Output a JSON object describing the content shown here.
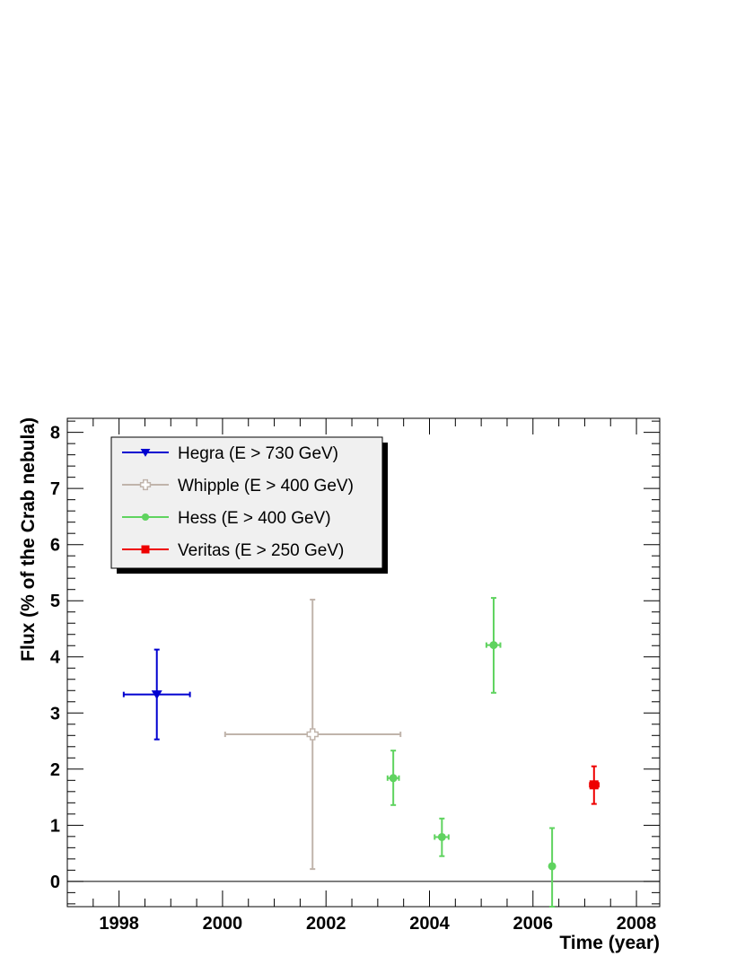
{
  "chart_data": {
    "type": "scatter",
    "title": "",
    "xlabel": "Time (year)",
    "ylabel": "Flux (% of the Crab nebula)",
    "xlim": [
      1997.0,
      2008.45
    ],
    "ylim": [
      -0.45,
      8.25
    ],
    "x_ticks": [
      1998,
      2000,
      2002,
      2004,
      2006,
      2008
    ],
    "x_tick_labels": [
      "1998",
      "2000",
      "2002",
      "2004",
      "2006",
      "2008"
    ],
    "y_ticks": [
      0,
      1,
      2,
      3,
      4,
      5,
      6,
      7,
      8
    ],
    "y_tick_labels": [
      "0",
      "1",
      "2",
      "3",
      "4",
      "5",
      "6",
      "7",
      "8"
    ],
    "grid": false,
    "legend_position": "top-left",
    "zero_line": true,
    "series": [
      {
        "name": "Hegra (E > 730 GeV)",
        "color": "#0000d0",
        "marker": "triangle-down",
        "points": [
          {
            "x": 1998.73,
            "y": 3.33,
            "xerr_low": 1998.09,
            "xerr_high": 1999.37,
            "yerr_low": 2.53,
            "yerr_high": 4.13
          }
        ]
      },
      {
        "name": "Whipple (E > 400 GeV)",
        "color": "#c0b4ab",
        "marker": "open-cross",
        "points": [
          {
            "x": 2001.74,
            "y": 2.62,
            "xerr_low": 2000.05,
            "xerr_high": 2003.44,
            "yerr_low": 0.22,
            "yerr_high": 5.02
          }
        ]
      },
      {
        "name": "Hess (E > 400 GeV)",
        "color": "#5fd35f",
        "marker": "circle",
        "points": [
          {
            "x": 2003.3,
            "y": 1.84,
            "xerr_low": 2003.19,
            "xerr_high": 2003.41,
            "yerr_low": 1.36,
            "yerr_high": 2.33
          },
          {
            "x": 2004.24,
            "y": 0.79,
            "xerr_low": 2004.1,
            "xerr_high": 2004.37,
            "yerr_low": 0.45,
            "yerr_high": 1.12
          },
          {
            "x": 2005.24,
            "y": 4.21,
            "xerr_low": 2005.1,
            "xerr_high": 2005.37,
            "yerr_low": 3.36,
            "yerr_high": 5.05
          },
          {
            "x": 2006.37,
            "y": 0.27,
            "xerr_low": 2006.37,
            "xerr_high": 2006.37,
            "yerr_low": -0.45,
            "yerr_high": 0.95
          }
        ]
      },
      {
        "name": "Veritas (E > 250 GeV)",
        "color": "#ee0000",
        "marker": "square",
        "points": [
          {
            "x": 2007.18,
            "y": 1.72,
            "xerr_low": 2007.1,
            "xerr_high": 2007.27,
            "yerr_low": 1.38,
            "yerr_high": 2.05
          }
        ]
      }
    ]
  }
}
